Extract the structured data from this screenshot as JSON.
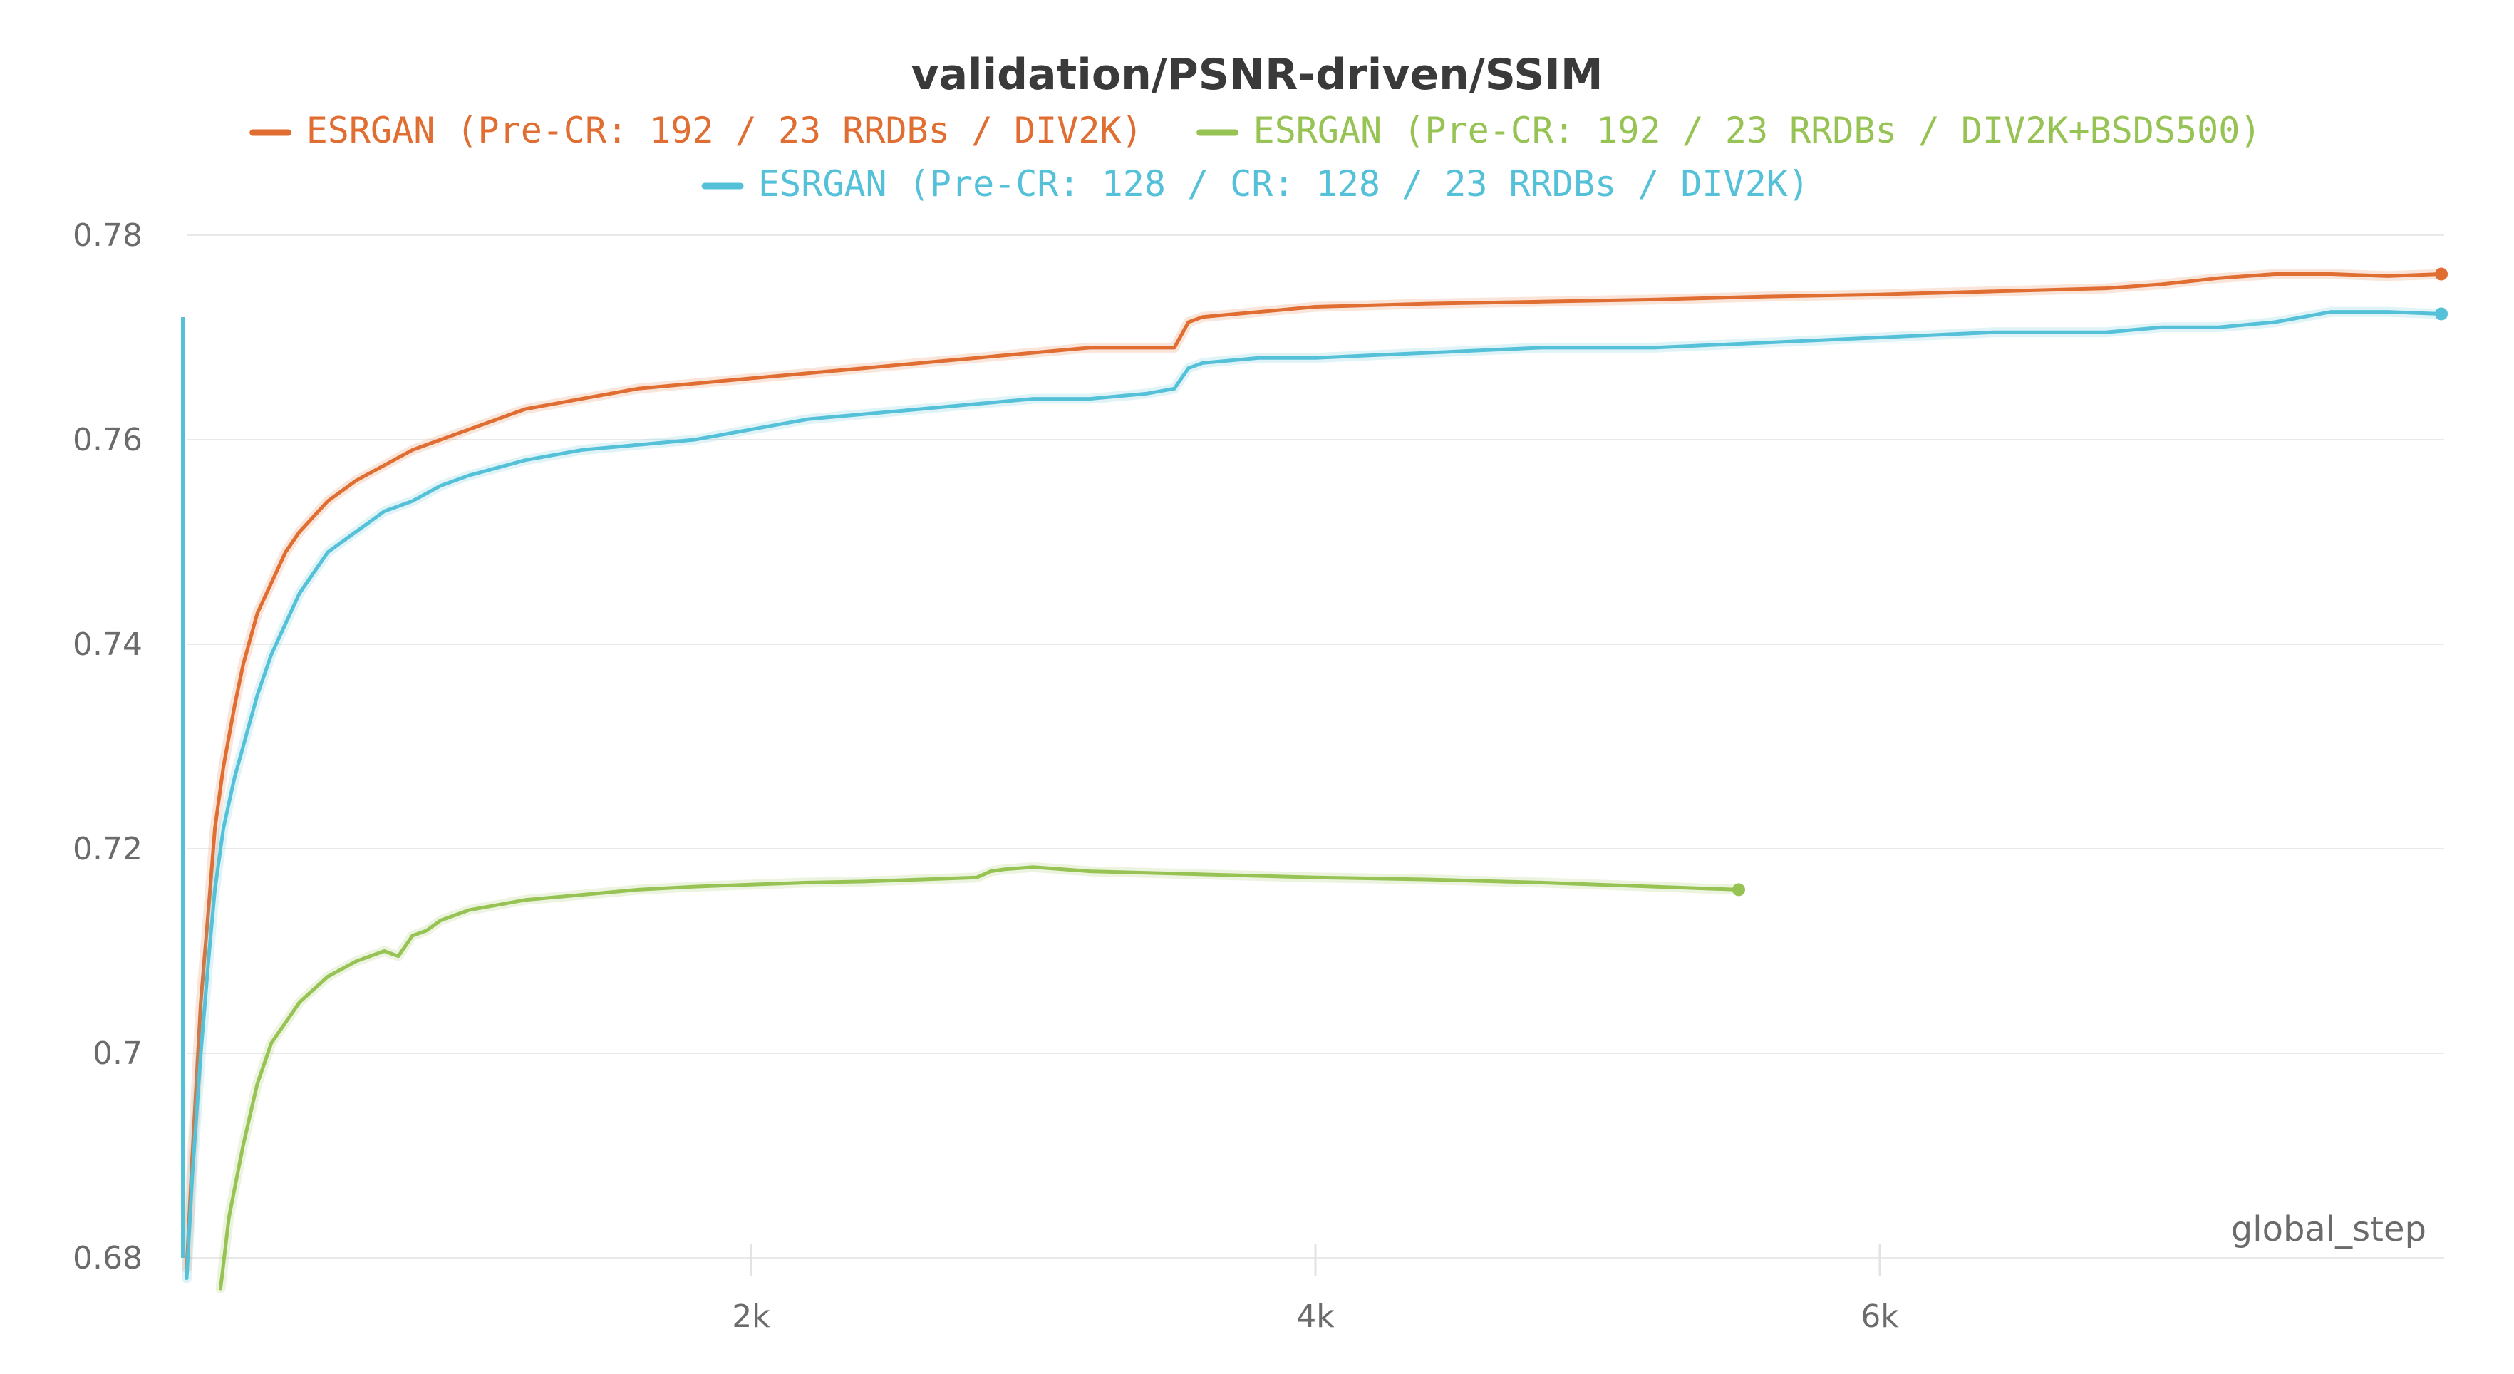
{
  "chart_data": {
    "type": "line",
    "title": "validation/PSNR-driven/SSIM",
    "xlabel": "global_step",
    "ylabel": "",
    "xlim": [
      0,
      8000
    ],
    "ylim": [
      0.68,
      0.78
    ],
    "x_ticks": [
      {
        "value": 2000,
        "label": "2k"
      },
      {
        "value": 4000,
        "label": "4k"
      },
      {
        "value": 6000,
        "label": "6k"
      }
    ],
    "y_ticks": [
      {
        "value": 0.78,
        "label": "0.78"
      },
      {
        "value": 0.76,
        "label": "0.76"
      },
      {
        "value": 0.74,
        "label": "0.74"
      },
      {
        "value": 0.72,
        "label": "0.72"
      },
      {
        "value": 0.7,
        "label": "0.7"
      },
      {
        "value": 0.68,
        "label": "0.68"
      }
    ],
    "grid": true,
    "legend_position": "top",
    "series": [
      {
        "name": "ESRGAN (Pre-CR: 192 / 23 RRDBs / DIV2K)",
        "color": "#E06D31",
        "x": [
          0,
          20,
          50,
          80,
          100,
          130,
          170,
          200,
          250,
          300,
          350,
          400,
          500,
          600,
          700,
          800,
          900,
          1000,
          1200,
          1400,
          1600,
          1800,
          2000,
          2200,
          2400,
          2600,
          2800,
          3000,
          3200,
          3400,
          3500,
          3550,
          3600,
          3800,
          4000,
          4400,
          4800,
          5200,
          5600,
          6000,
          6400,
          6800,
          7000,
          7200,
          7400,
          7600,
          7800,
          7990
        ],
        "values": [
          0.679,
          0.69,
          0.705,
          0.715,
          0.722,
          0.728,
          0.734,
          0.738,
          0.743,
          0.746,
          0.749,
          0.751,
          0.754,
          0.756,
          0.7575,
          0.759,
          0.76,
          0.761,
          0.763,
          0.764,
          0.765,
          0.7655,
          0.766,
          0.7665,
          0.767,
          0.7675,
          0.768,
          0.7685,
          0.769,
          0.769,
          0.769,
          0.7715,
          0.772,
          0.7725,
          0.773,
          0.7733,
          0.7735,
          0.7737,
          0.774,
          0.7742,
          0.7745,
          0.7748,
          0.7752,
          0.7758,
          0.7762,
          0.7762,
          0.776,
          0.7762
        ]
      },
      {
        "name": "ESRGAN (Pre-CR: 192 / 23 RRDBs / DIV2K+BSDS500)",
        "color": "#97C355",
        "x": [
          120,
          150,
          200,
          250,
          300,
          350,
          400,
          500,
          600,
          700,
          750,
          800,
          850,
          900,
          1000,
          1200,
          1400,
          1600,
          1800,
          2000,
          2200,
          2400,
          2600,
          2800,
          2850,
          2900,
          3000,
          3200,
          3600,
          4000,
          4400,
          4800,
          5200,
          5500
        ],
        "values": [
          0.677,
          0.684,
          0.691,
          0.697,
          0.701,
          0.703,
          0.705,
          0.7075,
          0.709,
          0.71,
          0.7095,
          0.7115,
          0.712,
          0.713,
          0.714,
          0.715,
          0.7155,
          0.716,
          0.7163,
          0.7165,
          0.7167,
          0.7168,
          0.717,
          0.7172,
          0.7178,
          0.718,
          0.7182,
          0.7178,
          0.7175,
          0.7172,
          0.717,
          0.7167,
          0.7163,
          0.716
        ]
      },
      {
        "name": "ESRGAN (Pre-CR: 128 / CR: 128 / 23 RRDBs / DIV2K)",
        "color": "#55C1D9",
        "x": [
          0,
          20,
          50,
          80,
          100,
          130,
          170,
          200,
          250,
          300,
          350,
          400,
          500,
          600,
          700,
          800,
          900,
          1000,
          1200,
          1400,
          1600,
          1800,
          2000,
          2200,
          2400,
          2600,
          2800,
          3000,
          3200,
          3400,
          3500,
          3550,
          3600,
          3800,
          4000,
          4400,
          4800,
          5200,
          5600,
          6000,
          6400,
          6800,
          7000,
          7200,
          7400,
          7600,
          7800,
          7990
        ],
        "values": [
          0.678,
          0.688,
          0.7,
          0.71,
          0.716,
          0.722,
          0.727,
          0.73,
          0.735,
          0.739,
          0.742,
          0.745,
          0.749,
          0.751,
          0.753,
          0.754,
          0.7555,
          0.7565,
          0.758,
          0.759,
          0.7595,
          0.76,
          0.761,
          0.762,
          0.7625,
          0.763,
          0.7635,
          0.764,
          0.764,
          0.7645,
          0.765,
          0.767,
          0.7675,
          0.768,
          0.768,
          0.7685,
          0.769,
          0.769,
          0.7695,
          0.77,
          0.7705,
          0.7705,
          0.771,
          0.771,
          0.7715,
          0.7725,
          0.7725,
          0.7723
        ]
      }
    ]
  }
}
